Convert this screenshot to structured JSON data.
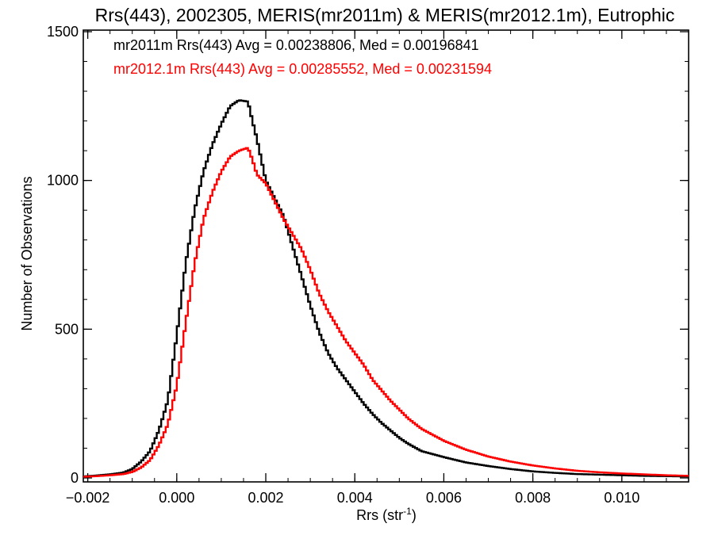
{
  "chart_data": {
    "type": "line",
    "step": true,
    "title": "Rrs(443), 2002305, MERIS(mr2011m) & MERIS(mr2012.1m), Eutrophic",
    "xlabel_main": "Rrs (str",
    "xlabel_sup": "-1",
    "xlabel_close": ")",
    "ylabel": "Number of Observations",
    "xlim": [
      -0.0021,
      0.0115
    ],
    "ylim": [
      0,
      1500
    ],
    "xticks": [
      -0.002,
      0.0,
      0.002,
      0.004,
      0.006,
      0.008,
      0.01
    ],
    "xtick_labels": [
      "−0.002",
      "0.000",
      "0.002",
      "0.004",
      "0.006",
      "0.008",
      "0.010"
    ],
    "yticks": [
      0,
      500,
      1000,
      1500
    ],
    "ytick_labels": [
      "0",
      "500",
      "1000",
      "1500"
    ],
    "grid": false,
    "legend_placement": "top-left",
    "series": [
      {
        "name": "mr2011m",
        "color": "#000000",
        "annotation": "mr2011m Rrs(443) Avg = 0.00238806, Med = 0.00196841",
        "x": [
          -0.0021,
          -0.0018,
          -0.0015,
          -0.0012,
          -0.001,
          -0.0008,
          -0.0006,
          -0.0004,
          -0.0002,
          0.0,
          0.0002,
          0.0004,
          0.0006,
          0.0008,
          0.001,
          0.0012,
          0.0014,
          0.0016,
          0.0017,
          0.0018,
          0.002,
          0.0022,
          0.0024,
          0.0026,
          0.0028,
          0.003,
          0.0032,
          0.0034,
          0.0036,
          0.0038,
          0.004,
          0.0042,
          0.0044,
          0.0046,
          0.0048,
          0.005,
          0.0052,
          0.0055,
          0.006,
          0.0065,
          0.007,
          0.0075,
          0.008,
          0.0085,
          0.009,
          0.0095,
          0.01,
          0.0105,
          0.011,
          0.0115
        ],
        "y": [
          5,
          8,
          12,
          18,
          30,
          55,
          90,
          160,
          260,
          480,
          720,
          900,
          1030,
          1120,
          1190,
          1250,
          1270,
          1265,
          1200,
          1140,
          1000,
          940,
          880,
          780,
          680,
          580,
          490,
          420,
          370,
          330,
          290,
          250,
          215,
          185,
          160,
          135,
          115,
          90,
          70,
          52,
          40,
          30,
          22,
          17,
          13,
          11,
          9,
          7,
          6,
          5
        ]
      },
      {
        "name": "mr2012.1m",
        "color": "#ff0000",
        "annotation": "mr2012.1m Rrs(443) Avg = 0.00285552, Med = 0.00231594",
        "x": [
          -0.0021,
          -0.0018,
          -0.0015,
          -0.0012,
          -0.001,
          -0.0008,
          -0.0006,
          -0.0004,
          -0.0002,
          0.0,
          0.0002,
          0.0004,
          0.0006,
          0.0008,
          0.001,
          0.0012,
          0.0014,
          0.0016,
          0.0017,
          0.0018,
          0.002,
          0.0022,
          0.0024,
          0.0026,
          0.0028,
          0.003,
          0.0032,
          0.0034,
          0.0036,
          0.0038,
          0.004,
          0.0042,
          0.0044,
          0.0046,
          0.0048,
          0.005,
          0.0052,
          0.0055,
          0.006,
          0.0065,
          0.007,
          0.0075,
          0.008,
          0.0085,
          0.009,
          0.0095,
          0.01,
          0.0105,
          0.011,
          0.0115
        ],
        "y": [
          4,
          6,
          9,
          13,
          20,
          35,
          60,
          110,
          180,
          310,
          520,
          720,
          870,
          960,
          1030,
          1080,
          1100,
          1110,
          1070,
          1020,
          990,
          930,
          870,
          820,
          770,
          700,
          620,
          560,
          510,
          460,
          420,
          380,
          330,
          295,
          260,
          230,
          200,
          165,
          125,
          95,
          72,
          55,
          42,
          32,
          24,
          19,
          15,
          12,
          9,
          7
        ]
      }
    ]
  }
}
